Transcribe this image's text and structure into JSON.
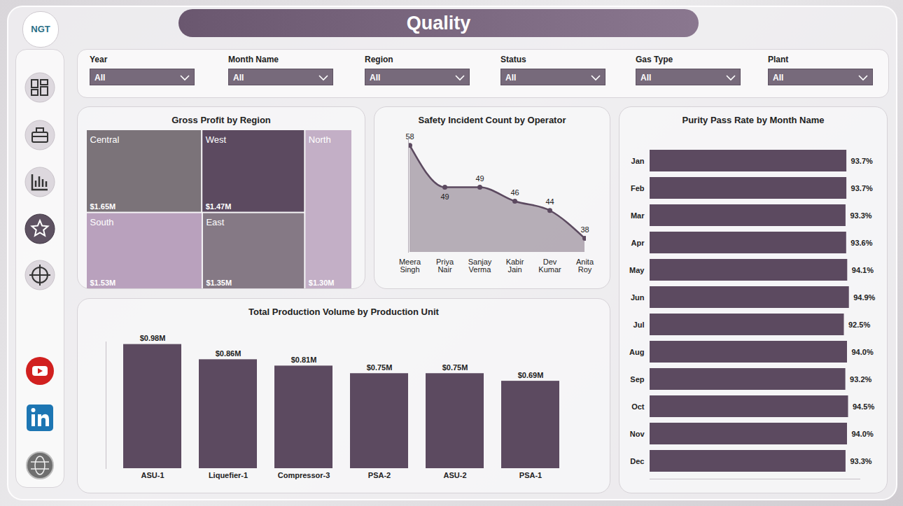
{
  "header": {
    "title": "Quality",
    "logo": "NGT"
  },
  "filters": [
    {
      "label": "Year",
      "value": "All"
    },
    {
      "label": "Month Name",
      "value": "All"
    },
    {
      "label": "Region",
      "value": "All"
    },
    {
      "label": "Status",
      "value": "All"
    },
    {
      "label": "Gas Type",
      "value": "All"
    },
    {
      "label": "Plant",
      "value": "All"
    }
  ],
  "chart_data": [
    {
      "type": "treemap",
      "title": "Gross Profit by Region",
      "categories": [
        "Central",
        "West",
        "South",
        "East",
        "North"
      ],
      "values": [
        1650000,
        1470000,
        1530000,
        1350000,
        1300000
      ],
      "value_labels": [
        "$1.65M",
        "$1.47M",
        "$1.53M",
        "$1.35M",
        "$1.30M"
      ],
      "colors": [
        "#7b7379",
        "#5c4a60",
        "#b9a1bd",
        "#857985",
        "#c3afc6"
      ],
      "data_labels": true
    },
    {
      "type": "area",
      "title": "Safety Incident Count by Operator",
      "categories": [
        "Meera Singh",
        "Priya Nair",
        "Sanjay Verma",
        "Kabir Jain",
        "Dev Kumar",
        "Anita Roy"
      ],
      "values": [
        58,
        49,
        49,
        46,
        44,
        38
      ],
      "color": "#5c4a60",
      "marker": "circle",
      "ylim": [
        35,
        60
      ],
      "yticks": [],
      "tick_labels": "x",
      "data_labels": true
    },
    {
      "type": "bar",
      "title": "Total Production Volume by Production Unit",
      "categories": [
        "ASU-1",
        "Liquefier-1",
        "Compressor-3",
        "PSA-2",
        "ASU-2",
        "PSA-1"
      ],
      "values": [
        980000,
        860000,
        810000,
        750000,
        750000,
        690000
      ],
      "value_labels": [
        "$0.98M",
        "$0.86M",
        "$0.81M",
        "$0.75M",
        "$0.75M",
        "$0.69M"
      ],
      "color": "#5c4a60",
      "ylim": [
        0,
        1000000
      ],
      "yticks": [],
      "tick_labels": "x",
      "data_labels": true
    },
    {
      "type": "bar",
      "orientation": "horizontal",
      "title": "Purity Pass Rate by Month Name",
      "categories": [
        "Jan",
        "Feb",
        "Mar",
        "Apr",
        "May",
        "Jun",
        "Jul",
        "Aug",
        "Sep",
        "Oct",
        "Nov",
        "Dec"
      ],
      "values": [
        93.7,
        93.7,
        93.3,
        93.6,
        94.1,
        94.9,
        92.5,
        94.0,
        93.2,
        94.5,
        94.0,
        93.3
      ],
      "value_labels": [
        "93.7%",
        "93.7%",
        "93.3%",
        "93.6%",
        "94.1%",
        "94.9%",
        "92.5%",
        "94.0%",
        "93.2%",
        "94.5%",
        "94.0%",
        "93.3%"
      ],
      "color": "#5c4a60",
      "xlim": [
        0,
        100
      ],
      "xticks": [],
      "tick_labels": "y",
      "data_labels": true
    }
  ]
}
